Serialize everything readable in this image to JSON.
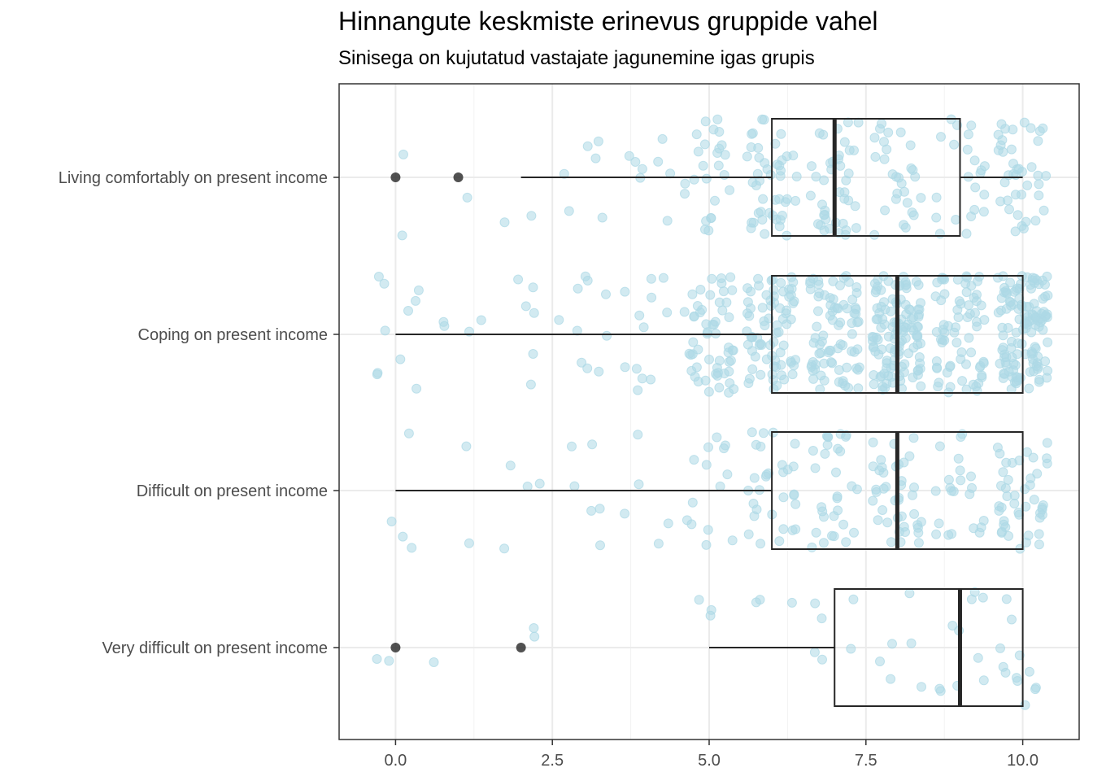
{
  "chart_data": {
    "type": "boxplot",
    "title": "Hinnangute keskmiste erinevus gruppide vahel",
    "subtitle": "Sinisega on kujutatud vastajate jagunemine igas grupis",
    "xlabel": "",
    "ylabel": "",
    "xlim": [
      -0.9,
      10.9
    ],
    "x_ticks": [
      0,
      2.5,
      5,
      7.5,
      10
    ],
    "x_tick_labels": [
      "0.0",
      "2.5",
      "5.0",
      "7.5",
      "10.0"
    ],
    "grid": true,
    "legend": "none",
    "colors": {
      "jitter": "#add8e6",
      "box": "#262626",
      "outlier": "#333333",
      "panel_border": "#333333",
      "grid": "#ebebeb"
    },
    "categories": [
      "Living comfortably on present income",
      "Coping on present income",
      "Difficult on present income",
      "Very difficult on present income"
    ],
    "boxes": [
      {
        "category": "Living comfortably on present income",
        "whisker_low": 2,
        "q1": 6,
        "median": 7,
        "q3": 9,
        "whisker_high": 10,
        "outliers": [
          0,
          1
        ]
      },
      {
        "category": "Coping on present income",
        "whisker_low": 0,
        "q1": 6,
        "median": 8,
        "q3": 10,
        "whisker_high": 10,
        "outliers": []
      },
      {
        "category": "Difficult on present income",
        "whisker_low": 0,
        "q1": 6,
        "median": 8,
        "q3": 10,
        "whisker_high": 10,
        "outliers": []
      },
      {
        "category": "Very difficult on present income",
        "whisker_low": 5,
        "q1": 7,
        "median": 9,
        "q3": 10,
        "whisker_high": 10,
        "outliers": [
          0,
          2
        ]
      }
    ],
    "jitter_counts": [
      {
        "category": "Living comfortably on present income",
        "counts": [
          2,
          1,
          2,
          6,
          8,
          25,
          45,
          40,
          28,
          22,
          40
        ]
      },
      {
        "category": "Coping on present income",
        "counts": [
          10,
          4,
          6,
          10,
          12,
          55,
          75,
          80,
          120,
          70,
          130
        ]
      },
      {
        "category": "Difficult on present income",
        "counts": [
          4,
          2,
          4,
          6,
          5,
          14,
          30,
          30,
          40,
          22,
          45
        ]
      },
      {
        "category": "Very difficult on present income",
        "counts": [
          2,
          1,
          2,
          0,
          0,
          3,
          3,
          6,
          6,
          10,
          12
        ]
      }
    ]
  }
}
